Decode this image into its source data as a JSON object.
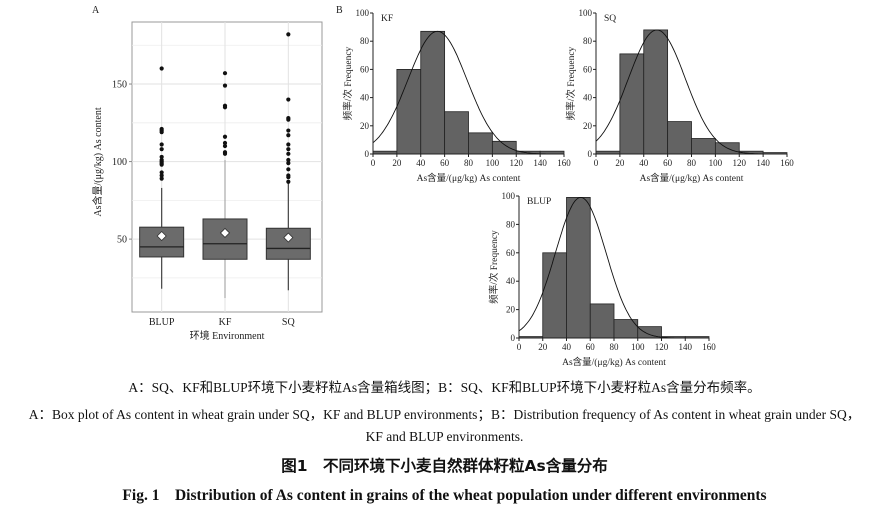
{
  "panel_labels": {
    "a": "A",
    "b": "B"
  },
  "chart_data": [
    {
      "type": "box",
      "id": "A",
      "xlabel": "环境  Environment",
      "ylabel": "As含量/(μg/kg)  As content",
      "ylim": [
        3,
        190
      ],
      "yticks": [
        50,
        100,
        150
      ],
      "grid": true,
      "categories": [
        "BLUP",
        "KF",
        "SQ"
      ],
      "boxes": [
        {
          "name": "BLUP",
          "whisker_low": 18,
          "q1": 38.5,
          "median": 45,
          "q3": 57.7,
          "whisker_high": 83,
          "mean": 52,
          "outliers": [
            160,
            121,
            120,
            119,
            111,
            108,
            103,
            101,
            100,
            99,
            98,
            93,
            91,
            89
          ]
        },
        {
          "name": "KF",
          "whisker_low": 12,
          "q1": 37,
          "median": 47,
          "q3": 63,
          "whisker_high": 101,
          "mean": 54,
          "outliers": [
            157,
            149,
            136,
            135,
            116,
            112,
            110,
            106,
            105
          ]
        },
        {
          "name": "SQ",
          "whisker_low": 17,
          "q1": 37,
          "median": 44,
          "q3": 57,
          "whisker_high": 87,
          "mean": 51,
          "outliers": [
            182,
            140,
            128,
            127,
            120,
            117,
            111,
            108,
            105,
            101,
            99,
            95,
            91,
            90,
            87
          ]
        }
      ]
    },
    {
      "type": "bar",
      "id": "KF",
      "title": "KF",
      "xlabel": "As含量/(μg/kg)  As content",
      "ylabel": "频率/次  Frequency",
      "bin_edges": [
        0,
        20,
        40,
        60,
        80,
        100,
        120,
        140,
        160
      ],
      "values": [
        2,
        60,
        87,
        30,
        15,
        9,
        2,
        2
      ],
      "xlim": [
        0,
        160
      ],
      "ylim": [
        0,
        100
      ],
      "xticks": [
        0,
        20,
        40,
        60,
        80,
        100,
        120,
        140,
        160
      ],
      "yticks": [
        0,
        20,
        40,
        60,
        80,
        100
      ],
      "normal_fit": {
        "mean": 54,
        "sd": 24.7,
        "peak": 87
      }
    },
    {
      "type": "bar",
      "id": "SQ",
      "title": "SQ",
      "xlabel": "As含量/(μg/kg)  As content",
      "ylabel": "频率/次  Frequency",
      "bin_edges": [
        0,
        20,
        40,
        60,
        80,
        100,
        120,
        140,
        160
      ],
      "values": [
        2,
        71,
        88,
        23,
        11,
        8,
        2,
        1
      ],
      "xlim": [
        0,
        160
      ],
      "ylim": [
        0,
        100
      ],
      "xticks": [
        0,
        20,
        40,
        60,
        80,
        100,
        120,
        140,
        160
      ],
      "yticks": [
        0,
        20,
        40,
        60,
        80,
        100
      ],
      "normal_fit": {
        "mean": 51,
        "sd": 23.9,
        "peak": 88
      }
    },
    {
      "type": "bar",
      "id": "BLUP",
      "title": "BLUP",
      "xlabel": "As含量/(μg/kg)  As content",
      "ylabel": "频率/次  Frequency",
      "bin_edges": [
        0,
        20,
        40,
        60,
        80,
        100,
        120,
        140,
        160
      ],
      "values": [
        1,
        60,
        99,
        24,
        13,
        8,
        1,
        1
      ],
      "xlim": [
        0,
        160
      ],
      "ylim": [
        0,
        100
      ],
      "xticks": [
        0,
        20,
        40,
        60,
        80,
        100,
        120,
        140,
        160
      ],
      "yticks": [
        0,
        20,
        40,
        60,
        80,
        100
      ],
      "normal_fit": {
        "mean": 52,
        "sd": 21.3,
        "peak": 99
      }
    }
  ],
  "caption": {
    "line1": "A：SQ、KF和BLUP环境下小麦籽粒As含量箱线图；B：SQ、KF和BLUP环境下小麦籽粒As含量分布频率。",
    "line2": "A：Box plot of As content in wheat grain under SQ，KF and BLUP environments；B：Distribution frequency of As content in wheat grain under SQ，",
    "line3": "KF and BLUP environments.",
    "title_cn": "图1　不同环境下小麦自然群体籽粒As含量分布",
    "title_en": "Fig. 1　Distribution of As content in grains of the wheat population under different environments"
  }
}
